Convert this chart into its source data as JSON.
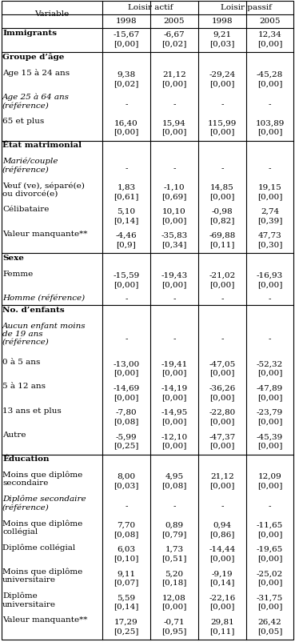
{
  "col_headers": [
    "Loisir actif",
    "Loisir passif"
  ],
  "sub_headers": [
    "1998",
    "2005",
    "1998",
    "2005"
  ],
  "var_header": "Variable",
  "rows": [
    {
      "label": "Immigrants",
      "bold": true,
      "italic": false,
      "vals": [
        "-15,67",
        "-6,67",
        "9,21",
        "12,34"
      ],
      "pvals": [
        "[0,00]",
        "[0,02]",
        "[0,03]",
        "[0,00]"
      ],
      "section_break_before": false
    },
    {
      "label": "Groupe d’âge",
      "bold": true,
      "italic": false,
      "vals": [
        "",
        "",
        "",
        ""
      ],
      "pvals": [
        "",
        "",
        "",
        ""
      ],
      "section_break_before": true
    },
    {
      "label": "Age 15 à 24 ans",
      "bold": false,
      "italic": false,
      "vals": [
        "9,38",
        "21,12",
        "-29,24",
        "-45,28"
      ],
      "pvals": [
        "[0,02]",
        "[0,00]",
        "[0,00]",
        "[0,00]"
      ],
      "section_break_before": false
    },
    {
      "label": "Age 25 à 64 ans\n(référence)",
      "bold": false,
      "italic": true,
      "vals": [
        "-",
        "-",
        "-",
        "-"
      ],
      "pvals": [
        "",
        "",
        "",
        ""
      ],
      "section_break_before": false
    },
    {
      "label": "65 et plus",
      "bold": false,
      "italic": false,
      "vals": [
        "16,40",
        "15,94",
        "115,99",
        "103,89"
      ],
      "pvals": [
        "[0,00]",
        "[0,00]",
        "[0,00]",
        "[0,00]"
      ],
      "section_break_before": false
    },
    {
      "label": "État matrimonial",
      "bold": true,
      "italic": false,
      "vals": [
        "",
        "",
        "",
        ""
      ],
      "pvals": [
        "",
        "",
        "",
        ""
      ],
      "section_break_before": true
    },
    {
      "label": "Marié/couple\n(référence)",
      "bold": false,
      "italic": true,
      "vals": [
        "-",
        "-",
        "-",
        "-"
      ],
      "pvals": [
        "",
        "",
        "",
        ""
      ],
      "section_break_before": false
    },
    {
      "label": "Veuf (ve), séparé(e)\nou divorcé(e)",
      "bold": false,
      "italic": false,
      "vals": [
        "1,83",
        "-1,10",
        "14,85",
        "19,15"
      ],
      "pvals": [
        "[0,61]",
        "[0,69]",
        "[0,00]",
        "[0,00]"
      ],
      "section_break_before": false
    },
    {
      "label": "Célibataire",
      "bold": false,
      "italic": false,
      "vals": [
        "5,10",
        "10,10",
        "-0,98",
        "2,74"
      ],
      "pvals": [
        "[0,14]",
        "[0,00]",
        "[0,82]",
        "[0,39]"
      ],
      "section_break_before": false
    },
    {
      "label": "Valeur manquante**",
      "bold": false,
      "italic": false,
      "vals": [
        "-4,46",
        "-35,83",
        "-69,88",
        "47,73"
      ],
      "pvals": [
        "[0,9]",
        "[0,34]",
        "[0,11]",
        "[0,30]"
      ],
      "section_break_before": false
    },
    {
      "label": "Sexe",
      "bold": true,
      "italic": false,
      "vals": [
        "",
        "",
        "",
        ""
      ],
      "pvals": [
        "",
        "",
        "",
        ""
      ],
      "section_break_before": true
    },
    {
      "label": "Femme",
      "bold": false,
      "italic": false,
      "vals": [
        "-15,59",
        "-19,43",
        "-21,02",
        "-16,93"
      ],
      "pvals": [
        "[0,00]",
        "[0,00]",
        "[0,00]",
        "[0,00]"
      ],
      "section_break_before": false
    },
    {
      "label": "Homme (référence)",
      "bold": false,
      "italic": true,
      "vals": [
        "-",
        "-",
        "-",
        "-"
      ],
      "pvals": [
        "",
        "",
        "",
        ""
      ],
      "section_break_before": false
    },
    {
      "label": "No. d’enfants",
      "bold": true,
      "italic": false,
      "vals": [
        "",
        "",
        "",
        ""
      ],
      "pvals": [
        "",
        "",
        "",
        ""
      ],
      "section_break_before": true
    },
    {
      "label": "Aucun enfant moins\nde 19 ans\n(référence)",
      "bold": false,
      "italic": true,
      "vals": [
        "-",
        "-",
        "-",
        "-"
      ],
      "pvals": [
        "",
        "",
        "",
        ""
      ],
      "section_break_before": false
    },
    {
      "label": "0 à 5 ans",
      "bold": false,
      "italic": false,
      "vals": [
        "-13,00",
        "-19,41",
        "-47,05",
        "-52,32"
      ],
      "pvals": [
        "[0,00]",
        "[0,00]",
        "[0,00]",
        "[0,00]"
      ],
      "section_break_before": false
    },
    {
      "label": "5 à 12 ans",
      "bold": false,
      "italic": false,
      "vals": [
        "-14,69",
        "-14,19",
        "-36,26",
        "-47,89"
      ],
      "pvals": [
        "[0,00]",
        "[0,00]",
        "[0,00]",
        "[0,00]"
      ],
      "section_break_before": false
    },
    {
      "label": "13 ans et plus",
      "bold": false,
      "italic": false,
      "vals": [
        "-7,80",
        "-14,95",
        "-22,80",
        "-23,79"
      ],
      "pvals": [
        "[0,08]",
        "[0,00]",
        "[0,00]",
        "[0,00]"
      ],
      "section_break_before": false
    },
    {
      "label": "Autre",
      "bold": false,
      "italic": false,
      "vals": [
        "-5,99",
        "-12,10",
        "-47,37",
        "-45,39"
      ],
      "pvals": [
        "[0,25]",
        "[0,00]",
        "[0,00]",
        "[0,00]"
      ],
      "section_break_before": false
    },
    {
      "label": "Éducation",
      "bold": true,
      "italic": false,
      "vals": [
        "",
        "",
        "",
        ""
      ],
      "pvals": [
        "",
        "",
        "",
        ""
      ],
      "section_break_before": true
    },
    {
      "label": "Moins que diplôme\nsecondaire",
      "bold": false,
      "italic": false,
      "vals": [
        "8,00",
        "4,95",
        "21,12",
        "12,09"
      ],
      "pvals": [
        "[0,03]",
        "[0,08]",
        "[0,00]",
        "[0,00]"
      ],
      "section_break_before": false
    },
    {
      "label": "Diplôme secondaire\n(référence)",
      "bold": false,
      "italic": true,
      "vals": [
        "-",
        "-",
        "-",
        "-"
      ],
      "pvals": [
        "",
        "",
        "",
        ""
      ],
      "section_break_before": false
    },
    {
      "label": "Moins que diplôme\ncollégial",
      "bold": false,
      "italic": false,
      "vals": [
        "7,70",
        "0,89",
        "0,94",
        "-11,65"
      ],
      "pvals": [
        "[0,08]",
        "[0,79]",
        "[0,86]",
        "[0,00]"
      ],
      "section_break_before": false
    },
    {
      "label": "Diplôme collégial",
      "bold": false,
      "italic": false,
      "vals": [
        "6,03",
        "1,73",
        "-14,44",
        "-19,65"
      ],
      "pvals": [
        "[0,10]",
        "[0,51]",
        "[0,00]",
        "[0,00]"
      ],
      "section_break_before": false
    },
    {
      "label": "Moins que diplôme\nuniversitaire",
      "bold": false,
      "italic": false,
      "vals": [
        "9,11",
        "5,20",
        "-9,19",
        "-25,02"
      ],
      "pvals": [
        "[0,07]",
        "[0,18]",
        "[0,14]",
        "[0,00]"
      ],
      "section_break_before": false
    },
    {
      "label": "Diplôme\nuniversitaire",
      "bold": false,
      "italic": false,
      "vals": [
        "5,59",
        "12,08",
        "-22,16",
        "-31,75"
      ],
      "pvals": [
        "[0,14]",
        "[0,00]",
        "[0,00]",
        "[0,00]"
      ],
      "section_break_before": false
    },
    {
      "label": "Valeur manquante**",
      "bold": false,
      "italic": false,
      "vals": [
        "17,29",
        "-0,71",
        "29,81",
        "26,42"
      ],
      "pvals": [
        "[0,25]",
        "[0,95]",
        "[0,11]",
        "[0,05]"
      ],
      "section_break_before": false
    }
  ]
}
